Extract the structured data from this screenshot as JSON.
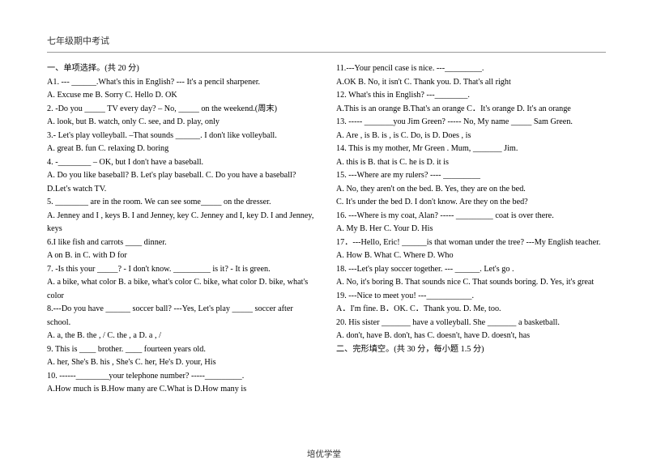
{
  "header": {
    "title": "七年级期中考试"
  },
  "footer": {
    "text": "培优学堂"
  },
  "section1": {
    "title": "一、单项选择。(共 20 分)",
    "q1": "A1. --- ______.What's this in English?      --- It's a pencil sharpener.",
    "q1o": "        A. Excuse me       B. Sorry         C. Hello           D. OK",
    "q2": "2. -Do you _____ TV every day? – No, _____ on the weekend.(周末)",
    "q2o": "  A. look, but    B. watch, only   C. see, and    D. play, only",
    "q3": "3.- Let's play volleyball. –That sounds ______. I don't like volleyball.",
    "q3o": "   A. great    B. fun      C. relaxing       D. boring",
    "q4": "4. -________   – OK, but I don't have a baseball.",
    "q4o": "   A. Do you like baseball?     B. Let's play baseball.   C. Do you have a baseball?   D.Let's watch TV.",
    "q5": "5. ________ are in the room. We can see some_____ on the dresser.",
    "q5o": "  A. Jenney and I , keys       B. I and Jenney, key      C. Jenney and I, key  D. I and Jenney, keys",
    "q6": "6.I like fish and carrots ____ dinner.",
    "q6o": "  A    on     B.    in      C. with      D    for",
    "q7": "7. -Is this your _____?     - I don't know. _________ is it?          - It is green.",
    "q7o": " A. a bike, what color   B. a bike, what's color     C. bike, what color  D. bike, what's color",
    "q8": "8.---Do you have ______ soccer ball? ---Yes, Let's play _____ soccer after school.",
    "q8o": "   A. a, the       B. the , /            C. the , a         D. a , /",
    "q9": "9. This is ____ brother. ____ fourteen years old.",
    "q9o": "  A. her, She's    B. his , She's    C. her, He's       D. your, His",
    "q10": "10. ------________your telephone number? -----_________.",
    "q10o": "    A.How much is         B.How many are       C.What is       D.How many is",
    "q11": "11.---Your pencil case is nice.    ---_________.",
    "q11o": "   A.OK              B. No, it isn't    C. Thank you.       D. That's all right",
    "q12": "12.   What's this in English?   ---________.",
    "q12o": "  A.This is an orange     B.That's an orange     C．It's orange    D. It's an orange",
    "q13": "13. ----- _______you Jim Green? ----- No, My name _____ Sam Green.",
    "q13o": "  A. Are ,   is         B. is , is         C. Do, is           D. Does , is",
    "q14": "14. This is my mother, Mr Green . Mum, _______ Jim.",
    "q14o": "  A. this is           B. that is           C. he is           D. it is",
    "q15": "15. ---Where are my rulers? ---- _________",
    "q15o": "    A. No, they aren't on the bed.        B. Yes, they are on the bed.",
    "q15o2": "      C. It's under the bed                     D. I don't know. Are they on the bed?",
    "q16": "16. ---Where is my coat, Alan? ----- _________ coat is over there.",
    "q16o": "  A. My               B. Her               C. Your          D. His",
    "q17": "17．---Hello, Eric! ______is that woman under the tree?       ---My English teacher.",
    "q17o": "  A. How              B. What              C. Where        D. Who",
    "q18": "18. ---Let's play soccer together.    --- ______. Let's go .",
    "q18o": "   A. No, it's boring         B. That sounds nice       C. That sounds boring.   D. Yes, it's great",
    "q19": "19. ---Nice to meet you! ---___________.",
    "q19o": "    A．I'm fine.     B．OK.          C．Thank you.   D. Me, too.",
    "q20": "20.   His sister _______ have a volleyball. She _______ a basketball.",
    "q20o": "A. don't, have         B. don't, has     C. doesn't,  have        D. doesn't, has"
  },
  "section2": {
    "title": "二、完形填空。(共 30 分，每小题 1.5 分)"
  }
}
